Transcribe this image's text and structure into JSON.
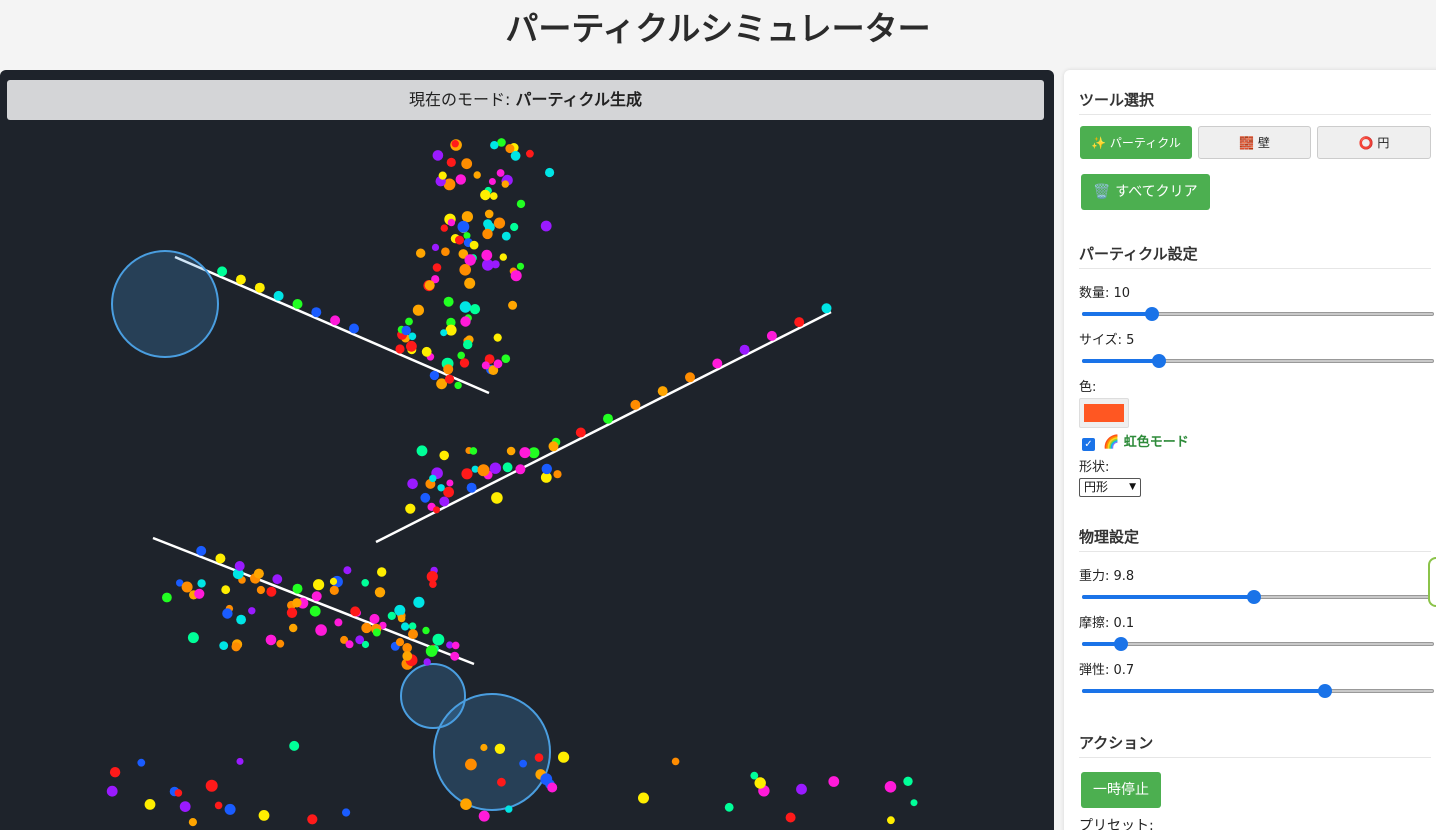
{
  "app": {
    "title": "パーティクルシミュレーター"
  },
  "mode_bar": {
    "prefix": "現在のモード:",
    "mode": "パーティクル生成"
  },
  "tools": {
    "title": "ツール選択",
    "particle": "✨ パーティクル",
    "wall": "🧱 壁",
    "circle": "⭕ 円",
    "clear_all": "🗑️ すべてクリア"
  },
  "particle_settings": {
    "title": "パーティクル設定",
    "count_label": "数量:",
    "count_value": "10",
    "count_fraction": 0.2,
    "size_label": "サイズ:",
    "size_value": "5",
    "size_fraction": 0.22,
    "color_label": "色:",
    "color_value": "#ff5722",
    "rainbow_label": "🌈 虹色モード",
    "rainbow_checked": true,
    "shape_label": "形状:",
    "shape_value": "円形"
  },
  "physics_settings": {
    "title": "物理設定",
    "gravity_label": "重力:",
    "gravity_value": "9.8",
    "gravity_fraction": 0.49,
    "friction_label": "摩擦:",
    "friction_value": "0.1",
    "friction_fraction": 0.11,
    "bounce_label": "弾性:",
    "bounce_value": "0.7",
    "bounce_fraction": 0.69
  },
  "actions": {
    "title": "アクション",
    "pause": "一時停止",
    "presets_label": "プリセット:"
  },
  "colors": {
    "accent": "#4caf50",
    "canvas_bg": "#1e232b",
    "slider": "#1a73e8"
  }
}
